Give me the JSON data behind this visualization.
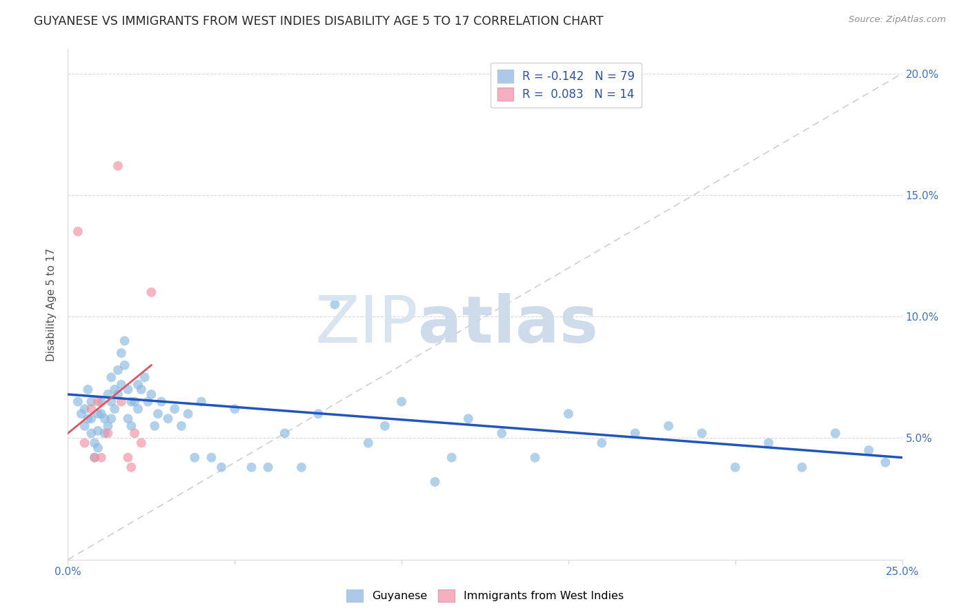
{
  "title": "GUYANESE VS IMMIGRANTS FROM WEST INDIES DISABILITY AGE 5 TO 17 CORRELATION CHART",
  "source": "Source: ZipAtlas.com",
  "ylabel": "Disability Age 5 to 17",
  "xlim": [
    0.0,
    0.25
  ],
  "ylim": [
    0.0,
    0.21
  ],
  "xticks": [
    0.0,
    0.05,
    0.1,
    0.15,
    0.2,
    0.25
  ],
  "yticks": [
    0.05,
    0.1,
    0.15,
    0.2
  ],
  "xticklabels": [
    "0.0%",
    "",
    "",
    "",
    "",
    "25.0%"
  ],
  "yticklabels": [
    "5.0%",
    "10.0%",
    "15.0%",
    "20.0%"
  ],
  "legend1_color": "#adc8e8",
  "legend2_color": "#f4b0be",
  "scatter1_color": "#88b8e0",
  "scatter2_color": "#f090a0",
  "line1_color": "#2255bb",
  "line2_color": "#dd5566",
  "refline_color": "#c8c8d0",
  "guyanese_x": [
    0.003,
    0.004,
    0.005,
    0.005,
    0.006,
    0.006,
    0.007,
    0.007,
    0.007,
    0.008,
    0.008,
    0.009,
    0.009,
    0.009,
    0.01,
    0.01,
    0.011,
    0.011,
    0.012,
    0.012,
    0.013,
    0.013,
    0.013,
    0.014,
    0.014,
    0.015,
    0.015,
    0.016,
    0.016,
    0.017,
    0.017,
    0.018,
    0.018,
    0.019,
    0.019,
    0.02,
    0.021,
    0.021,
    0.022,
    0.023,
    0.024,
    0.025,
    0.026,
    0.027,
    0.028,
    0.03,
    0.032,
    0.034,
    0.036,
    0.038,
    0.04,
    0.043,
    0.046,
    0.05,
    0.055,
    0.06,
    0.065,
    0.07,
    0.075,
    0.08,
    0.09,
    0.095,
    0.1,
    0.11,
    0.115,
    0.12,
    0.13,
    0.14,
    0.15,
    0.16,
    0.17,
    0.18,
    0.19,
    0.2,
    0.21,
    0.22,
    0.23,
    0.24,
    0.245
  ],
  "guyanese_y": [
    0.065,
    0.06,
    0.062,
    0.055,
    0.07,
    0.058,
    0.065,
    0.058,
    0.052,
    0.048,
    0.042,
    0.06,
    0.053,
    0.046,
    0.065,
    0.06,
    0.058,
    0.052,
    0.068,
    0.055,
    0.075,
    0.065,
    0.058,
    0.07,
    0.062,
    0.078,
    0.068,
    0.085,
    0.072,
    0.09,
    0.08,
    0.07,
    0.058,
    0.065,
    0.055,
    0.065,
    0.072,
    0.062,
    0.07,
    0.075,
    0.065,
    0.068,
    0.055,
    0.06,
    0.065,
    0.058,
    0.062,
    0.055,
    0.06,
    0.042,
    0.065,
    0.042,
    0.038,
    0.062,
    0.038,
    0.038,
    0.052,
    0.038,
    0.06,
    0.105,
    0.048,
    0.055,
    0.065,
    0.032,
    0.042,
    0.058,
    0.052,
    0.042,
    0.06,
    0.048,
    0.052,
    0.055,
    0.052,
    0.038,
    0.048,
    0.038,
    0.052,
    0.045,
    0.04
  ],
  "westindies_x": [
    0.003,
    0.005,
    0.007,
    0.008,
    0.009,
    0.01,
    0.012,
    0.015,
    0.016,
    0.018,
    0.019,
    0.02,
    0.022,
    0.025
  ],
  "westindies_y": [
    0.135,
    0.048,
    0.062,
    0.042,
    0.065,
    0.042,
    0.052,
    0.162,
    0.065,
    0.042,
    0.038,
    0.052,
    0.048,
    0.11
  ],
  "r1": -0.142,
  "r2": 0.083,
  "n1": 79,
  "n2": 14,
  "line1_x0": 0.0,
  "line1_y0": 0.068,
  "line1_x1": 0.25,
  "line1_y1": 0.042,
  "line2_x0": 0.0,
  "line2_y0": 0.052,
  "line2_x1": 0.025,
  "line2_y1": 0.08
}
